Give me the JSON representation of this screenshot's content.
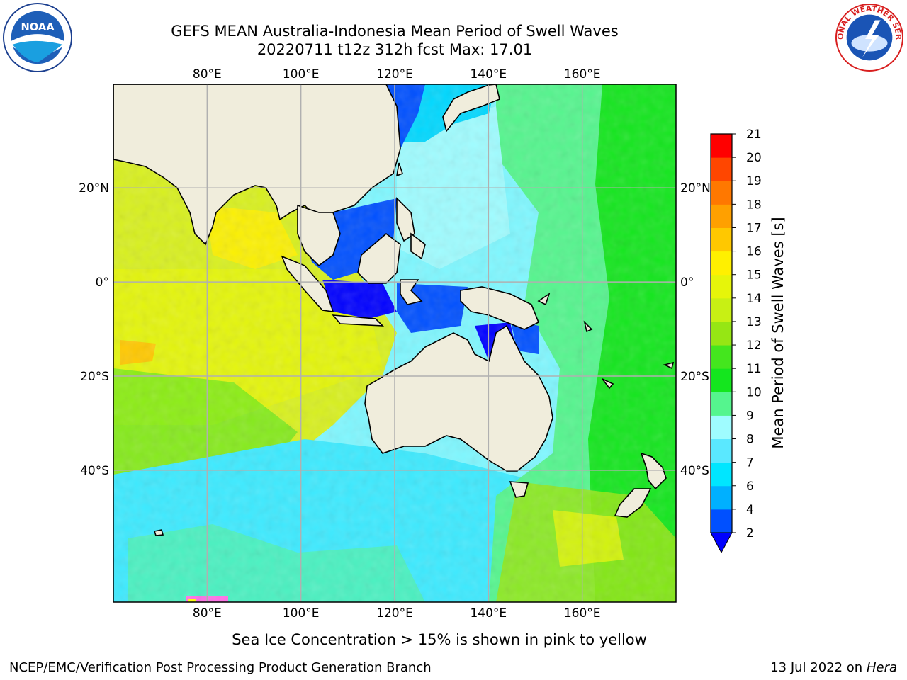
{
  "title_line1": "GEFS MEAN Australia-Indonesia Mean Period of Swell Waves",
  "title_line2": "20220711 t12z 312h fcst   Max: 17.01",
  "logos": {
    "left": "NOAA",
    "right": "NATIONAL WEATHER SERVICE"
  },
  "map": {
    "lon_ticks": [
      "80°E",
      "100°E",
      "120°E",
      "140°E",
      "160°E"
    ],
    "lat_ticks": [
      "20°N",
      "0°",
      "20°S",
      "40°S"
    ],
    "lon_values": [
      80,
      100,
      120,
      140,
      160
    ],
    "lat_values": [
      20,
      0,
      -20,
      -40
    ],
    "lon_range": [
      60,
      180
    ],
    "lat_range": [
      -68,
      42
    ],
    "colors": {
      "land": "#f0eddc",
      "grid": "#b0b0b0",
      "coast": "#000000"
    }
  },
  "colorbar": {
    "label": "Mean Period of Swell Waves [s]",
    "levels": [
      "2",
      "4",
      "6",
      "7",
      "8",
      "9",
      "10",
      "11",
      "12",
      "13",
      "14",
      "15",
      "16",
      "17",
      "18",
      "19",
      "20",
      "21"
    ],
    "colors": [
      "#0050ff",
      "#00b0ff",
      "#00e6ff",
      "#5ae8ff",
      "#9ffcff",
      "#55f58e",
      "#14e61e",
      "#44e61e",
      "#96e614",
      "#c8f014",
      "#e6f50a",
      "#fff000",
      "#ffc800",
      "#ffa000",
      "#ff7800",
      "#ff4600",
      "#ff0000"
    ],
    "under_color": "#0000ff"
  },
  "note": "Sea Ice Concentration > 15% is shown in pink to yellow",
  "footer_left": "NCEP/EMC/Verification Post Processing Product Generation Branch",
  "footer_right_date": "13 Jul 2022 on ",
  "footer_right_host": "Hera"
}
